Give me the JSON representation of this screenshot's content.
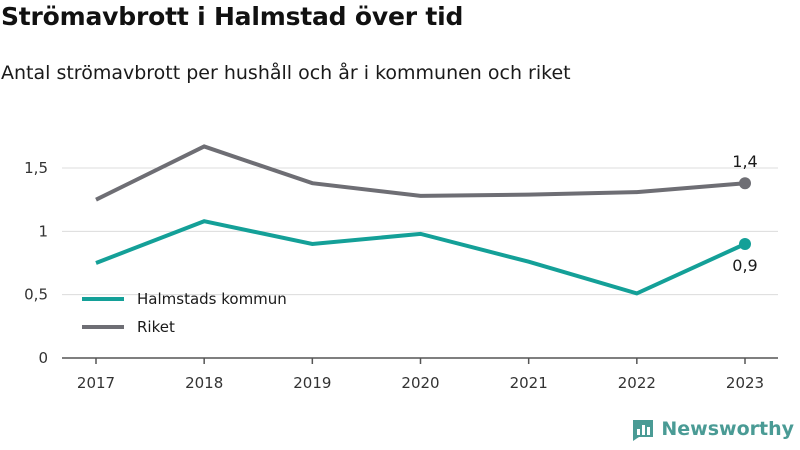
{
  "title": "Strömavbrott i Halmstad över tid",
  "subtitle": "Antal strömavbrott per hushåll och år i kommunen och riket",
  "brand": {
    "name": "Newsworthy",
    "color": "#4a9b95",
    "icon": "bar-chart-logo-icon"
  },
  "chart_data": {
    "type": "line",
    "x": [
      "2017",
      "2018",
      "2019",
      "2020",
      "2021",
      "2022",
      "2023"
    ],
    "ylim": [
      0,
      1.5
    ],
    "yticks": [
      {
        "value": 0,
        "label": "0"
      },
      {
        "value": 0.5,
        "label": "0,5"
      },
      {
        "value": 1,
        "label": "1"
      },
      {
        "value": 1.5,
        "label": "1,5"
      }
    ],
    "grid": true,
    "legend": "inside-bottom-left",
    "series": [
      {
        "name": "Halmstads kommun",
        "color": "#14a098",
        "values": [
          0.75,
          1.08,
          0.9,
          0.98,
          0.76,
          0.51,
          0.9
        ],
        "end_label": "0,9",
        "end_label_pos": "below"
      },
      {
        "name": "Riket",
        "color": "#6e6e74",
        "values": [
          1.25,
          1.67,
          1.38,
          1.28,
          1.29,
          1.31,
          1.38
        ],
        "end_label": "1,4",
        "end_label_pos": "above"
      }
    ]
  }
}
